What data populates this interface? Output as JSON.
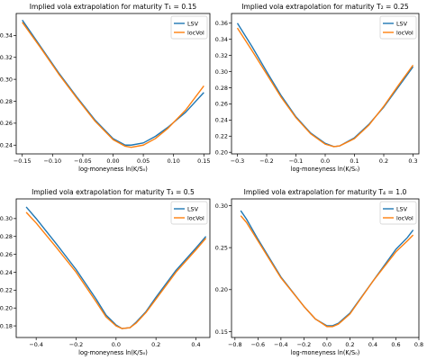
{
  "figure": {
    "background": "#ffffff",
    "series_colors": {
      "LSV": "#1f77b4",
      "locVol": "#ff7f0e"
    }
  },
  "chart_data": [
    {
      "type": "line",
      "title": "Implied vola extrapolation for maturity T₁ = 0.15",
      "xlabel": "log-moneyness ln(K/S₀)",
      "ylabel": "",
      "xlim": [
        -0.16,
        0.16
      ],
      "ylim": [
        0.232,
        0.36
      ],
      "xticks": [
        -0.15,
        -0.1,
        -0.05,
        0.0,
        0.05,
        0.1,
        0.15
      ],
      "xtick_labels": [
        "−0.15",
        "−0.10",
        "−0.05",
        "0.00",
        "0.05",
        "0.10",
        "0.15"
      ],
      "yticks": [
        0.24,
        0.26,
        0.28,
        0.3,
        0.32,
        0.34
      ],
      "ytick_labels": [
        "0.24",
        "0.26",
        "0.28",
        "0.30",
        "0.32",
        "0.34"
      ],
      "legend": "top-right",
      "grid": false,
      "series": [
        {
          "name": "LSV",
          "color": "#1f77b4",
          "x": [
            -0.15,
            -0.12,
            -0.09,
            -0.06,
            -0.03,
            0.0,
            0.02,
            0.03,
            0.05,
            0.07,
            0.09,
            0.12,
            0.15
          ],
          "y": [
            0.354,
            0.33,
            0.306,
            0.284,
            0.263,
            0.246,
            0.24,
            0.24,
            0.242,
            0.248,
            0.256,
            0.27,
            0.288
          ]
        },
        {
          "name": "locVol",
          "color": "#ff7f0e",
          "x": [
            -0.15,
            -0.12,
            -0.09,
            -0.06,
            -0.03,
            0.0,
            0.02,
            0.03,
            0.05,
            0.07,
            0.09,
            0.12,
            0.15
          ],
          "y": [
            0.352,
            0.329,
            0.305,
            0.283,
            0.262,
            0.245,
            0.239,
            0.238,
            0.24,
            0.246,
            0.255,
            0.272,
            0.294
          ]
        }
      ]
    },
    {
      "type": "line",
      "title": "Implied vola extrapolation for maturity T₂ = 0.25",
      "xlabel": "log-moneyness ln(K/S₀)",
      "ylabel": "",
      "xlim": [
        -0.32,
        0.32
      ],
      "ylim": [
        0.198,
        0.372
      ],
      "xticks": [
        -0.3,
        -0.2,
        -0.1,
        0.0,
        0.1,
        0.2,
        0.3
      ],
      "xtick_labels": [
        "−0.3",
        "−0.2",
        "−0.1",
        "0.0",
        "0.1",
        "0.2",
        "0.3"
      ],
      "yticks": [
        0.2,
        0.22,
        0.24,
        0.26,
        0.28,
        0.3,
        0.32,
        0.34,
        0.36
      ],
      "ytick_labels": [
        "0.20",
        "0.22",
        "0.24",
        "0.26",
        "0.28",
        "0.30",
        "0.32",
        "0.34",
        "0.36"
      ],
      "legend": "top-right",
      "grid": false,
      "series": [
        {
          "name": "LSV",
          "color": "#1f77b4",
          "x": [
            -0.3,
            -0.25,
            -0.2,
            -0.15,
            -0.1,
            -0.05,
            0.0,
            0.03,
            0.05,
            0.1,
            0.15,
            0.2,
            0.25,
            0.3
          ],
          "y": [
            0.36,
            0.331,
            0.3,
            0.27,
            0.244,
            0.224,
            0.211,
            0.207,
            0.208,
            0.218,
            0.235,
            0.256,
            0.281,
            0.306
          ]
        },
        {
          "name": "locVol",
          "color": "#ff7f0e",
          "x": [
            -0.3,
            -0.25,
            -0.2,
            -0.15,
            -0.1,
            -0.05,
            0.0,
            0.03,
            0.05,
            0.1,
            0.15,
            0.2,
            0.25,
            0.3
          ],
          "y": [
            0.354,
            0.326,
            0.297,
            0.268,
            0.243,
            0.223,
            0.21,
            0.207,
            0.208,
            0.217,
            0.234,
            0.257,
            0.283,
            0.308
          ]
        }
      ]
    },
    {
      "type": "line",
      "title": "Implied vola extrapolation for maturity T₃ = 0.5",
      "xlabel": "log-moneyness ln(K/S₀)",
      "ylabel": "",
      "xlim": [
        -0.5,
        0.47
      ],
      "ylim": [
        0.167,
        0.322
      ],
      "xticks": [
        -0.4,
        -0.2,
        0.0,
        0.2,
        0.4
      ],
      "xtick_labels": [
        "−0.4",
        "−0.2",
        "0.0",
        "0.2",
        "0.4"
      ],
      "yticks": [
        0.18,
        0.2,
        0.22,
        0.24,
        0.26,
        0.28,
        0.3
      ],
      "ytick_labels": [
        "0.18",
        "0.20",
        "0.22",
        "0.24",
        "0.26",
        "0.28",
        "0.30"
      ],
      "legend": "top-right",
      "grid": false,
      "series": [
        {
          "name": "LSV",
          "color": "#1f77b4",
          "x": [
            -0.45,
            -0.4,
            -0.3,
            -0.2,
            -0.1,
            -0.05,
            0.0,
            0.03,
            0.07,
            0.1,
            0.15,
            0.2,
            0.3,
            0.4,
            0.45
          ],
          "y": [
            0.313,
            0.3,
            0.272,
            0.243,
            0.21,
            0.192,
            0.181,
            0.177,
            0.178,
            0.184,
            0.196,
            0.212,
            0.242,
            0.267,
            0.28
          ]
        },
        {
          "name": "locVol",
          "color": "#ff7f0e",
          "x": [
            -0.45,
            -0.4,
            -0.3,
            -0.2,
            -0.1,
            -0.05,
            0.0,
            0.03,
            0.07,
            0.1,
            0.15,
            0.2,
            0.3,
            0.4,
            0.45
          ],
          "y": [
            0.307,
            0.295,
            0.268,
            0.24,
            0.207,
            0.19,
            0.18,
            0.177,
            0.178,
            0.183,
            0.195,
            0.21,
            0.24,
            0.265,
            0.278
          ]
        }
      ]
    },
    {
      "type": "line",
      "title": "Implied vola extrapolation for maturity T₄ = 1.0",
      "xlabel": "log-moneyness ln(K/S₀)",
      "ylabel": "",
      "xlim": [
        -0.83,
        0.8
      ],
      "ylim": [
        0.143,
        0.308
      ],
      "xticks": [
        -0.8,
        -0.6,
        -0.4,
        -0.2,
        0.0,
        0.2,
        0.4,
        0.6,
        0.8
      ],
      "xtick_labels": [
        "−0.8",
        "−0.6",
        "−0.4",
        "−0.2",
        "0.0",
        "0.2",
        "0.4",
        "0.6",
        "0.8"
      ],
      "yticks": [
        0.15,
        0.2,
        0.25,
        0.3
      ],
      "ytick_labels": [
        "0.15",
        "0.20",
        "0.25",
        "0.30"
      ],
      "legend": "top-right",
      "grid": false,
      "series": [
        {
          "name": "LSV",
          "color": "#1f77b4",
          "x": [
            -0.75,
            -0.7,
            -0.6,
            -0.4,
            -0.2,
            -0.1,
            0.0,
            0.05,
            0.1,
            0.2,
            0.4,
            0.6,
            0.7,
            0.75
          ],
          "y": [
            0.294,
            0.284,
            0.26,
            0.215,
            0.18,
            0.165,
            0.157,
            0.157,
            0.16,
            0.172,
            0.21,
            0.248,
            0.262,
            0.271
          ]
        },
        {
          "name": "locVol",
          "color": "#ff7f0e",
          "x": [
            -0.75,
            -0.7,
            -0.6,
            -0.4,
            -0.2,
            -0.1,
            0.0,
            0.05,
            0.1,
            0.2,
            0.4,
            0.6,
            0.7,
            0.75
          ],
          "y": [
            0.288,
            0.28,
            0.258,
            0.214,
            0.18,
            0.165,
            0.156,
            0.156,
            0.159,
            0.171,
            0.21,
            0.245,
            0.258,
            0.265
          ]
        }
      ]
    }
  ]
}
